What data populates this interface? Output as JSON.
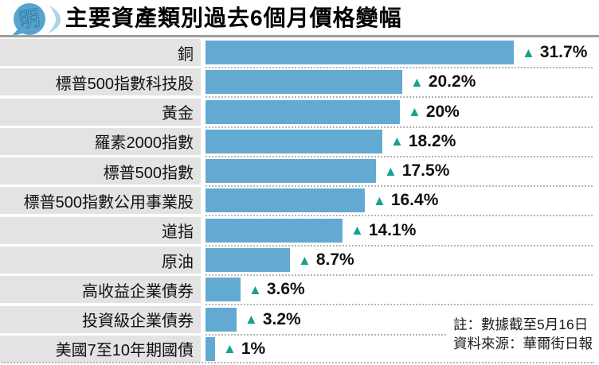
{
  "header": {
    "logo_glyph": "明",
    "title": "主要資產類別過去6個月價格變幅"
  },
  "chart_data": {
    "type": "bar",
    "orientation": "horizontal",
    "title": "主要資產類別過去6個月價格變幅",
    "categories": [
      "銅",
      "標普500指數科技股",
      "黃金",
      "羅素2000指數",
      "標普500指數",
      "標普500指數公用事業股",
      "道指",
      "原油",
      "高收益企業債券",
      "投資級企業債券",
      "美國7至10年期國債"
    ],
    "values": [
      31.7,
      20.2,
      20,
      18.2,
      17.5,
      16.4,
      14.1,
      8.7,
      3.6,
      3.2,
      1
    ],
    "value_labels": [
      "31.7%",
      "20.2%",
      "20%",
      "18.2%",
      "17.5%",
      "16.4%",
      "14.1%",
      "8.7%",
      "3.6%",
      "3.2%",
      "1%"
    ],
    "marker_glyph": "▲",
    "xlim": [
      0,
      32
    ],
    "grid": false,
    "bar_color": "#62aad2",
    "marker_color": "#16a28d",
    "row_bg_color": "#e3e3e3"
  },
  "notes": {
    "line1": "註：數據截至5月16日",
    "line2": "資料來源：華爾街日報"
  }
}
